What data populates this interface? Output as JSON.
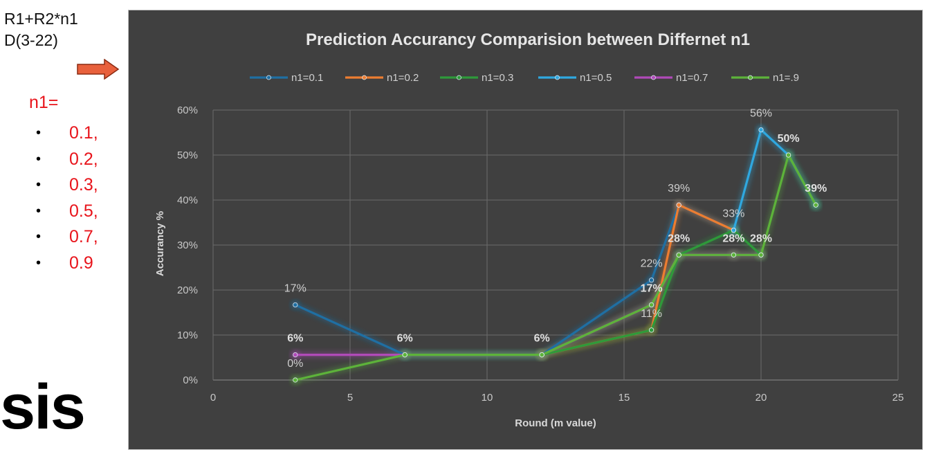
{
  "slide": {
    "formula_line1": "R1+R2*n1",
    "formula_line2": "D(3-22)",
    "n1_heading": "n1=",
    "n1_values": [
      "0.1,",
      "0.2,",
      "0.3,",
      "0.5,",
      "0.7,",
      "0.9"
    ],
    "bullet": "•",
    "big_text": "sis",
    "arrow_color": "#e8603c",
    "text_red": "#e8141b"
  },
  "chart_data": {
    "type": "line",
    "title": "Prediction Accurancy Comparision between Differnet n1",
    "xlabel": "Round (m value)",
    "ylabel": "Accurancy %",
    "xlim": [
      0,
      25
    ],
    "ylim": [
      0,
      0.6
    ],
    "x_ticks": [
      "0",
      "5",
      "10",
      "15",
      "20",
      "25"
    ],
    "y_ticks": [
      "0%",
      "10%",
      "20%",
      "30%",
      "40%",
      "50%",
      "60%"
    ],
    "grid": true,
    "legend_position": "top",
    "series": [
      {
        "name": "n1=0.1",
        "color": "#1f6fa3",
        "points": [
          [
            3,
            0.167
          ],
          [
            7,
            0.056
          ],
          [
            12,
            0.056
          ],
          [
            16,
            0.222
          ],
          [
            17,
            0.389
          ],
          [
            19,
            0.333
          ]
        ]
      },
      {
        "name": "n1=0.2",
        "color": "#ed7d31",
        "points": [
          [
            12,
            0.056
          ],
          [
            16,
            0.111
          ],
          [
            17,
            0.389
          ],
          [
            19,
            0.333
          ]
        ]
      },
      {
        "name": "n1=0.3",
        "color": "#2e9a3a",
        "points": [
          [
            7,
            0.056
          ],
          [
            12,
            0.056
          ],
          [
            16,
            0.111
          ],
          [
            17,
            0.278
          ],
          [
            19,
            0.333
          ],
          [
            20,
            0.278
          ]
        ]
      },
      {
        "name": "n1=0.5",
        "color": "#2fa8e0",
        "points": [
          [
            19,
            0.333
          ],
          [
            20,
            0.556
          ],
          [
            21,
            0.5
          ],
          [
            22,
            0.389
          ]
        ]
      },
      {
        "name": "n1=0.7",
        "color": "#b04ab8",
        "points": [
          [
            3,
            0.056
          ],
          [
            7,
            0.056
          ],
          [
            12,
            0.056
          ],
          [
            16,
            0.167
          ],
          [
            17,
            0.278
          ],
          [
            19,
            0.278
          ],
          [
            20,
            0.278
          ]
        ]
      },
      {
        "name": "n1=.9",
        "color": "#5db33a",
        "points": [
          [
            3,
            0.0
          ],
          [
            7,
            0.056
          ],
          [
            12,
            0.056
          ],
          [
            16,
            0.167
          ],
          [
            17,
            0.278
          ],
          [
            19,
            0.278
          ],
          [
            20,
            0.278
          ],
          [
            21,
            0.5
          ],
          [
            22,
            0.389
          ]
        ]
      }
    ],
    "data_labels": [
      {
        "x": 3,
        "y": 0.167,
        "text": "17%",
        "pos": "above",
        "bold": false
      },
      {
        "x": 3,
        "y": 0.056,
        "text": "6%",
        "pos": "above",
        "bold": true
      },
      {
        "x": 3,
        "y": 0.0,
        "text": "0%",
        "pos": "above",
        "bold": false
      },
      {
        "x": 7,
        "y": 0.056,
        "text": "6%",
        "pos": "above",
        "bold": true
      },
      {
        "x": 12,
        "y": 0.056,
        "text": "6%",
        "pos": "above",
        "bold": true
      },
      {
        "x": 16,
        "y": 0.222,
        "text": "22%",
        "pos": "above",
        "bold": false
      },
      {
        "x": 16,
        "y": 0.167,
        "text": "17%",
        "pos": "above",
        "bold": true
      },
      {
        "x": 16,
        "y": 0.111,
        "text": "11%",
        "pos": "above",
        "bold": false
      },
      {
        "x": 17,
        "y": 0.389,
        "text": "39%",
        "pos": "above",
        "bold": false
      },
      {
        "x": 17,
        "y": 0.278,
        "text": "28%",
        "pos": "above",
        "bold": true
      },
      {
        "x": 19,
        "y": 0.333,
        "text": "33%",
        "pos": "above",
        "bold": false
      },
      {
        "x": 19,
        "y": 0.278,
        "text": "28%",
        "pos": "above",
        "bold": true
      },
      {
        "x": 20,
        "y": 0.556,
        "text": "56%",
        "pos": "above",
        "bold": false
      },
      {
        "x": 20,
        "y": 0.278,
        "text": "28%",
        "pos": "above",
        "bold": true
      },
      {
        "x": 21,
        "y": 0.5,
        "text": "50%",
        "pos": "above",
        "bold": true
      },
      {
        "x": 22,
        "y": 0.389,
        "text": "39%",
        "pos": "above",
        "bold": true
      }
    ]
  }
}
